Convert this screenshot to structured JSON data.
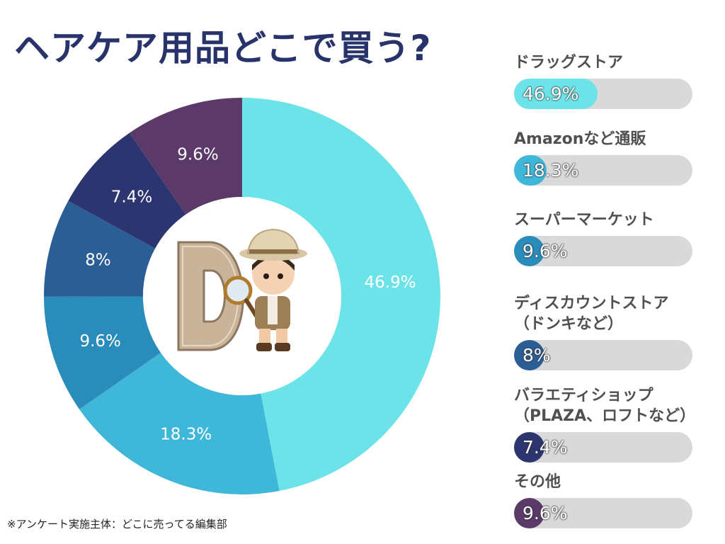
{
  "title": "ヘアケア用品どこで買う?",
  "footnote": "※アンケート実施主体：どこに売ってる編集部",
  "chart_data": {
    "type": "pie",
    "categories": [
      "ドラッグストア",
      "Amazonなど通販",
      "スーパーマーケット",
      "ディスカウントストア（ドンキなど）",
      "バラエティショップ（PLAZA、ロフトなど）",
      "その他"
    ],
    "values": [
      46.9,
      18.3,
      9.6,
      8,
      7.4,
      9.6
    ],
    "value_labels": [
      "46.9%",
      "18.3%",
      "9.6%",
      "8%",
      "7.4%",
      "9.6%"
    ],
    "colors": [
      "#6ce3e8",
      "#3fb7d8",
      "#2a8cba",
      "#2c5e96",
      "#2c3570",
      "#5b3a6a"
    ],
    "bar_labels": [
      [
        "ドラッグストア"
      ],
      [
        "Amazonなど通販"
      ],
      [
        "スーパーマーケット"
      ],
      [
        "ディスカウントストア",
        "（ドンキなど）"
      ],
      [
        "バラエティショップ",
        "（PLAZA、ロフトなど）"
      ],
      [
        "その他"
      ]
    ]
  }
}
